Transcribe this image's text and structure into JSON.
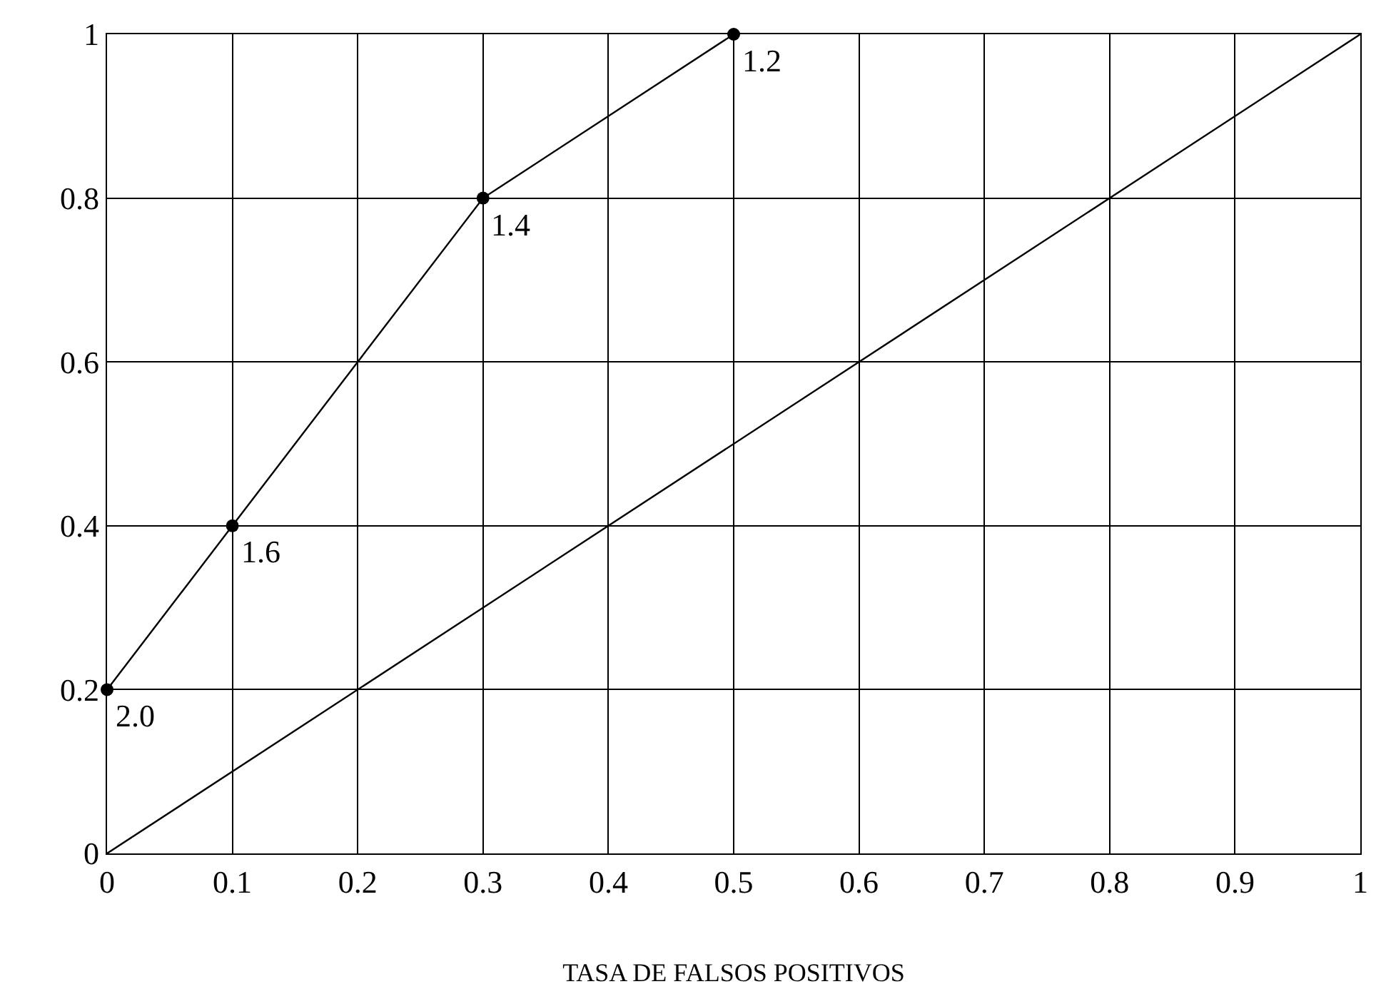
{
  "chart_data": {
    "type": "line",
    "xlabel": "TASA DE FALSOS POSITIVOS",
    "xlim": [
      0,
      1
    ],
    "xticks": [
      0,
      0.1,
      0.2,
      0.3,
      0.4,
      0.5,
      0.6,
      0.7,
      0.8,
      0.9,
      1
    ],
    "ylim": [
      0,
      1
    ],
    "yticks": [
      0,
      0.2,
      0.4,
      0.6,
      0.8,
      1
    ],
    "grid": true,
    "line_style": "solid",
    "series": [
      {
        "color": "#000000",
        "marker": "circle",
        "x": [
          0,
          0.1,
          0.3,
          0.5
        ],
        "values": [
          0.2,
          0.4,
          0.8,
          1
        ]
      },
      {
        "color": "#000000",
        "marker": "none",
        "x": [
          0,
          1
        ],
        "values": [
          0,
          1
        ]
      }
    ],
    "annotations": [
      {
        "text": "2.0",
        "x": 0,
        "y": 0.2
      },
      {
        "text": "1.6",
        "x": 0.1,
        "y": 0.4
      },
      {
        "text": "1.4",
        "x": 0.3,
        "y": 0.8
      },
      {
        "text": "1.2",
        "x": 0.5,
        "y": 1
      }
    ]
  }
}
